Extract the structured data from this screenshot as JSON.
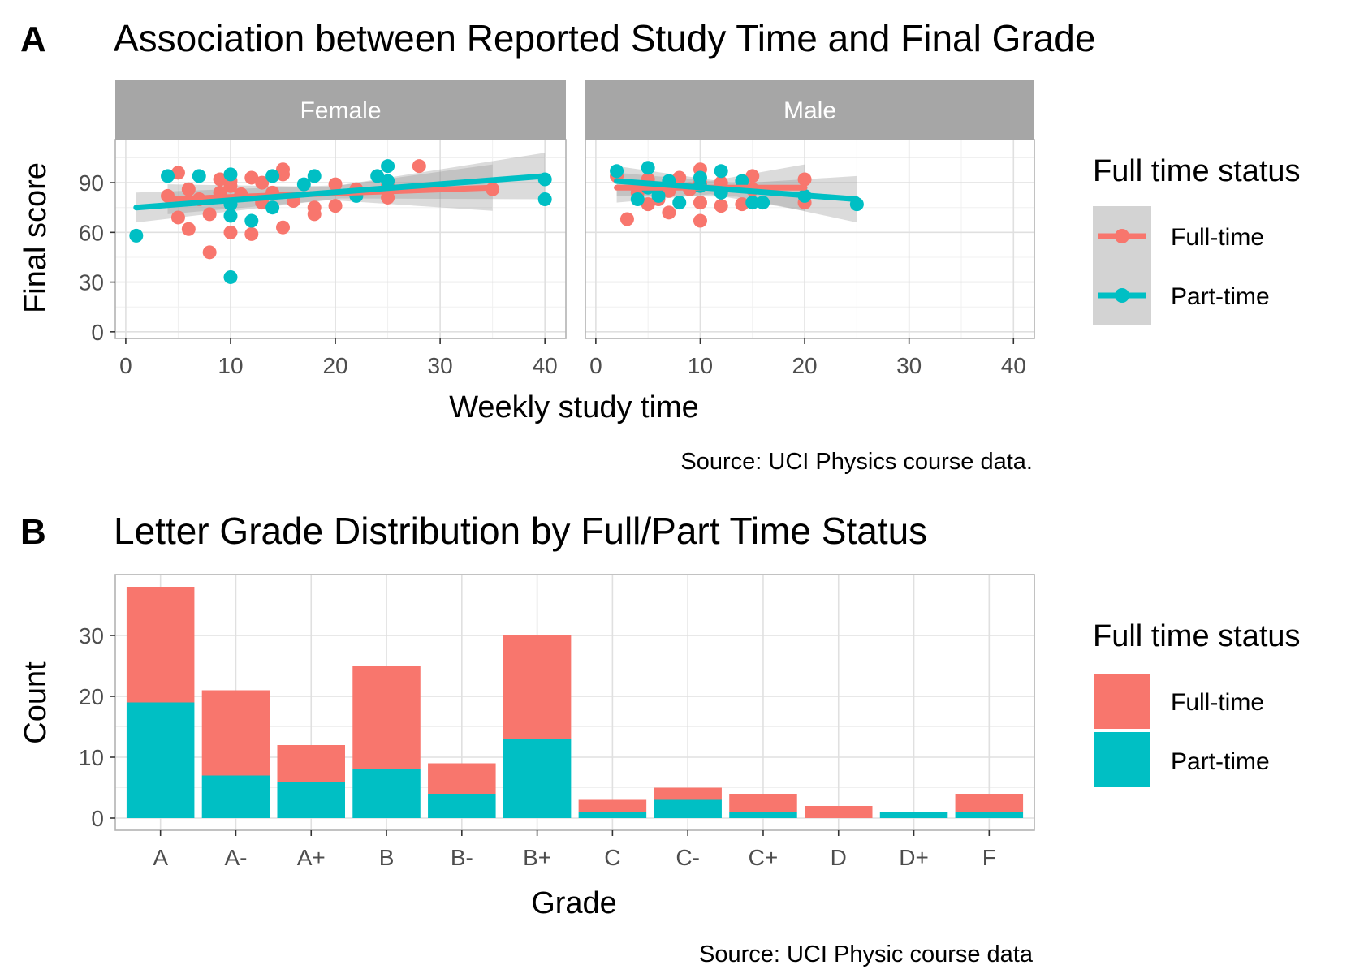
{
  "colors": {
    "full_time": "#F8766D",
    "part_time": "#00BFC4",
    "strip": "#A6A6A6",
    "grid": "#E0E0E0",
    "panel_border": "#B3B3B3",
    "band": "#999999",
    "legend_key_bg": "#D3D3D3"
  },
  "chart_data": [
    {
      "type": "scatter",
      "panel_label": "A",
      "title": "Association between Reported Study Time and Final Grade",
      "xlabel": "Weekly study time",
      "ylabel": "Final score",
      "caption": "Source: UCI Physics course data.",
      "xlim": [
        -1,
        42
      ],
      "ylim": [
        -4,
        116
      ],
      "x_ticks": [
        0,
        10,
        20,
        30,
        40
      ],
      "y_ticks": [
        0,
        30,
        60,
        90
      ],
      "grid": true,
      "legend": {
        "title": "Full time status",
        "placement": "right",
        "entries": [
          "Full-time",
          "Part-time"
        ]
      },
      "facets": [
        {
          "label": "Female",
          "series": [
            {
              "key": "full_time",
              "points": [
                [
                  4,
                  82
                ],
                [
                  5,
                  96
                ],
                [
                  5,
                  69
                ],
                [
                  6,
                  86
                ],
                [
                  6,
                  62
                ],
                [
                  7,
                  80
                ],
                [
                  8,
                  48
                ],
                [
                  8,
                  71
                ],
                [
                  9,
                  92
                ],
                [
                  9,
                  84
                ],
                [
                  10,
                  91
                ],
                [
                  10,
                  60
                ],
                [
                  10,
                  88
                ],
                [
                  11,
                  83
                ],
                [
                  12,
                  93
                ],
                [
                  12,
                  59
                ],
                [
                  13,
                  90
                ],
                [
                  13,
                  78
                ],
                [
                  14,
                  84
                ],
                [
                  15,
                  98
                ],
                [
                  15,
                  95
                ],
                [
                  15,
                  63
                ],
                [
                  16,
                  79
                ],
                [
                  18,
                  75
                ],
                [
                  18,
                  71
                ],
                [
                  20,
                  89
                ],
                [
                  20,
                  76
                ],
                [
                  22,
                  86
                ],
                [
                  25,
                  88
                ],
                [
                  25,
                  81
                ],
                [
                  28,
                  100
                ],
                [
                  35,
                  86
                ]
              ],
              "fit": [
                [
                  4,
                  80
                ],
                [
                  35,
                  87
                ]
              ]
            },
            {
              "key": "part_time",
              "points": [
                [
                  1,
                  58
                ],
                [
                  4,
                  94
                ],
                [
                  7,
                  94
                ],
                [
                  10,
                  95
                ],
                [
                  10,
                  70
                ],
                [
                  10,
                  33
                ],
                [
                  10,
                  77
                ],
                [
                  12,
                  67
                ],
                [
                  14,
                  94
                ],
                [
                  14,
                  75
                ],
                [
                  17,
                  89
                ],
                [
                  18,
                  94
                ],
                [
                  22,
                  82
                ],
                [
                  24,
                  94
                ],
                [
                  25,
                  100
                ],
                [
                  25,
                  91
                ],
                [
                  40,
                  92
                ],
                [
                  40,
                  80
                ]
              ],
              "fit": [
                [
                  1,
                  75
                ],
                [
                  40,
                  94
                ]
              ]
            }
          ]
        },
        {
          "label": "Male",
          "series": [
            {
              "key": "full_time",
              "points": [
                [
                  2,
                  94
                ],
                [
                  3,
                  68
                ],
                [
                  4,
                  84
                ],
                [
                  5,
                  77
                ],
                [
                  5,
                  92
                ],
                [
                  6,
                  80
                ],
                [
                  7,
                  72
                ],
                [
                  7,
                  85
                ],
                [
                  8,
                  93
                ],
                [
                  9,
                  86
                ],
                [
                  10,
                  98
                ],
                [
                  10,
                  67
                ],
                [
                  10,
                  78
                ],
                [
                  10,
                  90
                ],
                [
                  12,
                  76
                ],
                [
                  12,
                  90
                ],
                [
                  14,
                  77
                ],
                [
                  15,
                  94
                ],
                [
                  15,
                  86
                ],
                [
                  20,
                  92
                ],
                [
                  20,
                  78
                ]
              ],
              "fit": [
                [
                  2,
                  87
                ],
                [
                  20,
                  87
                ]
              ]
            },
            {
              "key": "part_time",
              "points": [
                [
                  2,
                  97
                ],
                [
                  4,
                  80
                ],
                [
                  5,
                  99
                ],
                [
                  5,
                  87
                ],
                [
                  6,
                  82
                ],
                [
                  7,
                  91
                ],
                [
                  8,
                  78
                ],
                [
                  10,
                  88
                ],
                [
                  10,
                  93
                ],
                [
                  12,
                  97
                ],
                [
                  12,
                  84
                ],
                [
                  14,
                  91
                ],
                [
                  15,
                  78
                ],
                [
                  16,
                  78
                ],
                [
                  20,
                  82
                ],
                [
                  25,
                  77
                ]
              ],
              "fit": [
                [
                  2,
                  91
                ],
                [
                  25,
                  80
                ]
              ]
            }
          ]
        }
      ]
    },
    {
      "type": "bar",
      "panel_label": "B",
      "title": "Letter Grade Distribution by Full/Part Time Status",
      "xlabel": "Grade",
      "ylabel": "Count",
      "caption": "Source: UCI Physic course data",
      "stacked": true,
      "ylim": [
        -2,
        40
      ],
      "y_ticks": [
        0,
        10,
        20,
        30
      ],
      "grid": true,
      "categories": [
        "A",
        "A-",
        "A+",
        "B",
        "B-",
        "B+",
        "C",
        "C-",
        "C+",
        "D",
        "D+",
        "F"
      ],
      "series": [
        {
          "name": "Full-time",
          "key": "full_time",
          "values": [
            19,
            14,
            6,
            17,
            5,
            17,
            2,
            2,
            3,
            2,
            0,
            3
          ]
        },
        {
          "name": "Part-time",
          "key": "part_time",
          "values": [
            19,
            7,
            6,
            8,
            4,
            13,
            1,
            3,
            1,
            0,
            1,
            1
          ]
        }
      ],
      "legend": {
        "title": "Full time status",
        "placement": "right",
        "entries": [
          "Full-time",
          "Part-time"
        ]
      }
    }
  ]
}
